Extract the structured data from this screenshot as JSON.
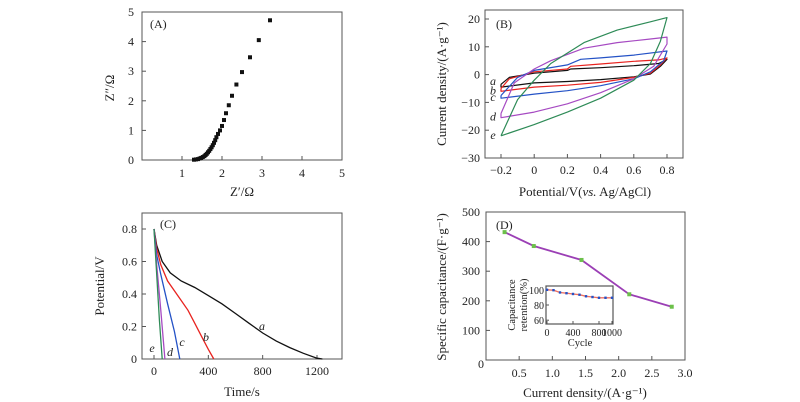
{
  "chart_data": [
    {
      "panel": "A",
      "type": "scatter",
      "panel_label": "(A)",
      "xlabel": "Z′/Ω",
      "ylabel": "Z″/Ω",
      "xlim": [
        0,
        5
      ],
      "ylim": [
        0,
        5
      ],
      "xticks": [
        "1",
        "2",
        "3",
        "4",
        "5"
      ],
      "yticks": [
        "0",
        "1",
        "2",
        "3",
        "4",
        "5"
      ],
      "origin_label": "0",
      "marker_color": "#111111",
      "points": [
        [
          1.3,
          0.01
        ],
        [
          1.35,
          0.02
        ],
        [
          1.4,
          0.03
        ],
        [
          1.44,
          0.05
        ],
        [
          1.48,
          0.07
        ],
        [
          1.52,
          0.1
        ],
        [
          1.56,
          0.13
        ],
        [
          1.59,
          0.17
        ],
        [
          1.62,
          0.21
        ],
        [
          1.65,
          0.26
        ],
        [
          1.68,
          0.31
        ],
        [
          1.71,
          0.37
        ],
        [
          1.74,
          0.43
        ],
        [
          1.77,
          0.5
        ],
        [
          1.8,
          0.58
        ],
        [
          1.83,
          0.67
        ],
        [
          1.86,
          0.77
        ],
        [
          1.9,
          0.88
        ],
        [
          1.95,
          1.0
        ],
        [
          2.0,
          1.15
        ],
        [
          2.05,
          1.35
        ],
        [
          2.1,
          1.58
        ],
        [
          2.17,
          1.85
        ],
        [
          2.25,
          2.17
        ],
        [
          2.36,
          2.55
        ],
        [
          2.5,
          2.97
        ],
        [
          2.7,
          3.47
        ],
        [
          2.92,
          4.05
        ],
        [
          3.2,
          4.72
        ]
      ]
    },
    {
      "panel": "B",
      "type": "line",
      "panel_label": "(B)",
      "xlabel_main": "Potential/V(",
      "xlabel_italic": "vs.",
      "xlabel_end": " Ag/AgCl)",
      "ylabel": "Current density/(A·g⁻¹)",
      "xlim": [
        -0.27,
        0.92
      ],
      "ylim": [
        -30,
        23
      ],
      "xticks": [
        -0.2,
        0,
        0.2,
        0.4,
        0.6,
        0.8
      ],
      "xtick_labels": [
        "−0.2",
        "0",
        "0.2",
        "0.4",
        "0.6",
        "0.8"
      ],
      "yticks": [
        -30,
        -20,
        -10,
        0,
        10,
        20
      ],
      "ytick_labels": [
        "−30",
        "−20",
        "−10",
        "0",
        "10",
        "20"
      ],
      "series": [
        {
          "name": "a",
          "color": "#111111",
          "upper": [
            [
              -0.2,
              -3.5
            ],
            [
              -0.15,
              -1.0
            ],
            [
              0.0,
              0.5
            ],
            [
              0.2,
              1.5
            ],
            [
              0.22,
              2.0
            ],
            [
              0.4,
              2.5
            ],
            [
              0.6,
              3.2
            ],
            [
              0.75,
              4.0
            ],
            [
              0.8,
              5.5
            ]
          ],
          "lower": [
            [
              0.8,
              5.5
            ],
            [
              0.76,
              3.0
            ],
            [
              0.7,
              0.2
            ],
            [
              0.6,
              -0.8
            ],
            [
              0.4,
              -1.8
            ],
            [
              0.2,
              -2.5
            ],
            [
              0.0,
              -3.0
            ],
            [
              -0.2,
              -4.5
            ]
          ]
        },
        {
          "name": "b",
          "color": "#e8231f",
          "upper": [
            [
              -0.2,
              -5.0
            ],
            [
              -0.15,
              -1.5
            ],
            [
              0.0,
              1.0
            ],
            [
              0.2,
              2.0
            ],
            [
              0.22,
              3.0
            ],
            [
              0.4,
              3.8
            ],
            [
              0.6,
              4.8
            ],
            [
              0.75,
              5.3
            ],
            [
              0.8,
              6.0
            ]
          ],
          "lower": [
            [
              0.8,
              6.0
            ],
            [
              0.76,
              3.5
            ],
            [
              0.7,
              0.5
            ],
            [
              0.6,
              -1.0
            ],
            [
              0.4,
              -2.8
            ],
            [
              0.2,
              -3.8
            ],
            [
              0.0,
              -4.5
            ],
            [
              -0.2,
              -6.0
            ]
          ]
        },
        {
          "name": "c",
          "color": "#2452c6",
          "upper": [
            [
              -0.2,
              -7.5
            ],
            [
              -0.1,
              -1.0
            ],
            [
              0.0,
              1.5
            ],
            [
              0.2,
              3.5
            ],
            [
              0.28,
              5.5
            ],
            [
              0.4,
              6.0
            ],
            [
              0.6,
              7.0
            ],
            [
              0.8,
              8.5
            ]
          ],
          "lower": [
            [
              0.8,
              8.5
            ],
            [
              0.78,
              5.0
            ],
            [
              0.7,
              1.0
            ],
            [
              0.6,
              -1.5
            ],
            [
              0.4,
              -4.0
            ],
            [
              0.2,
              -5.8
            ],
            [
              0.0,
              -7.0
            ],
            [
              -0.2,
              -8.5
            ]
          ]
        },
        {
          "name": "d",
          "color": "#a64ac2",
          "upper": [
            [
              -0.2,
              -14.0
            ],
            [
              -0.12,
              -3.0
            ],
            [
              0.0,
              2.0
            ],
            [
              0.1,
              5.0
            ],
            [
              0.3,
              9.5
            ],
            [
              0.5,
              11.5
            ],
            [
              0.7,
              12.8
            ],
            [
              0.8,
              13.5
            ]
          ],
          "lower": [
            [
              0.8,
              13.5
            ],
            [
              0.8,
              11.0
            ],
            [
              0.72,
              3.0
            ],
            [
              0.6,
              -1.5
            ],
            [
              0.4,
              -6.5
            ],
            [
              0.2,
              -10.5
            ],
            [
              0.0,
              -13.5
            ],
            [
              -0.2,
              -15.5
            ]
          ]
        },
        {
          "name": "e",
          "color": "#2e8b57",
          "upper": [
            [
              -0.2,
              -22.0
            ],
            [
              -0.1,
              -9.0
            ],
            [
              0.0,
              -2.0
            ],
            [
              0.1,
              4.0
            ],
            [
              0.3,
              11.5
            ],
            [
              0.5,
              16.0
            ],
            [
              0.7,
              19.0
            ],
            [
              0.8,
              20.5
            ]
          ],
          "lower": [
            [
              0.8,
              20.5
            ],
            [
              0.76,
              12.0
            ],
            [
              0.7,
              4.0
            ],
            [
              0.6,
              -2.0
            ],
            [
              0.4,
              -8.5
            ],
            [
              0.2,
              -13.5
            ],
            [
              0.0,
              -18.0
            ],
            [
              -0.2,
              -22.0
            ]
          ]
        }
      ],
      "curve_labels": [
        "a",
        "b",
        "c",
        "d",
        "e"
      ]
    },
    {
      "panel": "C",
      "type": "line",
      "panel_label": "(C)",
      "xlabel": "Time/s",
      "ylabel": "Potential/V",
      "xlim": [
        -80,
        1400
      ],
      "ylim": [
        0,
        0.9
      ],
      "xticks": [
        0,
        400,
        800,
        1200
      ],
      "xtick_labels": [
        "0",
        "400",
        "800",
        "1200"
      ],
      "yticks": [
        0,
        0.2,
        0.4,
        0.6,
        0.8
      ],
      "ytick_labels": [
        "0",
        "0.2",
        "0.4",
        "0.6",
        "0.8"
      ],
      "series": [
        {
          "name": "a",
          "color": "#111111",
          "points": [
            [
              0,
              0.8
            ],
            [
              20,
              0.7
            ],
            [
              60,
              0.6
            ],
            [
              120,
              0.53
            ],
            [
              200,
              0.48
            ],
            [
              300,
              0.44
            ],
            [
              400,
              0.39
            ],
            [
              500,
              0.34
            ],
            [
              600,
              0.28
            ],
            [
              700,
              0.22
            ],
            [
              800,
              0.16
            ],
            [
              900,
              0.11
            ],
            [
              1000,
              0.07
            ],
            [
              1100,
              0.035
            ],
            [
              1200,
              0.005
            ],
            [
              1240,
              0
            ]
          ]
        },
        {
          "name": "b",
          "color": "#e8231f",
          "points": [
            [
              0,
              0.8
            ],
            [
              20,
              0.68
            ],
            [
              50,
              0.58
            ],
            [
              100,
              0.48
            ],
            [
              150,
              0.42
            ],
            [
              200,
              0.36
            ],
            [
              250,
              0.3
            ],
            [
              300,
              0.22
            ],
            [
              350,
              0.14
            ],
            [
              400,
              0.06
            ],
            [
              440,
              0
            ]
          ]
        },
        {
          "name": "c",
          "color": "#2452c6",
          "points": [
            [
              0,
              0.8
            ],
            [
              20,
              0.64
            ],
            [
              50,
              0.52
            ],
            [
              100,
              0.34
            ],
            [
              150,
              0.17
            ],
            [
              190,
              0
            ]
          ]
        },
        {
          "name": "d",
          "color": "#a64ac2",
          "points": [
            [
              0,
              0.8
            ],
            [
              20,
              0.58
            ],
            [
              50,
              0.3
            ],
            [
              80,
              0
            ]
          ]
        },
        {
          "name": "e",
          "color": "#2e8b57",
          "points": [
            [
              0,
              0.8
            ],
            [
              20,
              0.52
            ],
            [
              40,
              0.24
            ],
            [
              60,
              0
            ]
          ]
        }
      ],
      "curve_labels": [
        "a",
        "b",
        "c",
        "d",
        "e"
      ]
    },
    {
      "panel": "D",
      "type": "line",
      "panel_label": "(D)",
      "xlabel": "Current density/(A·g⁻¹)",
      "ylabel": "Specific capacitance/(F·g⁻¹)",
      "xlim": [
        0,
        3.0
      ],
      "ylim": [
        0,
        500
      ],
      "xticks": [
        0.5,
        1.0,
        1.5,
        2.0,
        2.5,
        3.0
      ],
      "xtick_labels": [
        "0.5",
        "1.0",
        "1.5",
        "2.0",
        "2.5",
        "3.0"
      ],
      "yticks": [
        0,
        100,
        200,
        300,
        400,
        500
      ],
      "ytick_labels": [
        "0",
        "100",
        "200",
        "300",
        "400",
        "500"
      ],
      "line_color": "#9b3fb5",
      "marker_color": "#6cc04a",
      "x": [
        0.28,
        0.72,
        1.44,
        2.16,
        2.8
      ],
      "values": [
        432,
        385,
        338,
        222,
        180
      ],
      "inset": {
        "type": "line",
        "xlabel": "Cycle",
        "ylabel_line1": "Capacitance",
        "ylabel_line2": "retention(%)",
        "xlim": [
          0,
          1000
        ],
        "ylim": [
          55,
          105
        ],
        "xticks": [
          0,
          400,
          800,
          1000
        ],
        "xtick_labels": [
          "0",
          "400",
          "800",
          "1000"
        ],
        "yticks": [
          60,
          80,
          100
        ],
        "ytick_labels": [
          "60",
          "80",
          "100"
        ],
        "line_color": "#f07060",
        "marker_color": "#2452c6",
        "x": [
          0,
          100,
          200,
          300,
          400,
          500,
          600,
          700,
          800,
          900,
          1000
        ],
        "values": [
          100,
          99.5,
          96.5,
          95.5,
          94.5,
          93.5,
          91.5,
          90.5,
          89.5,
          89.5,
          89.5
        ]
      }
    }
  ]
}
